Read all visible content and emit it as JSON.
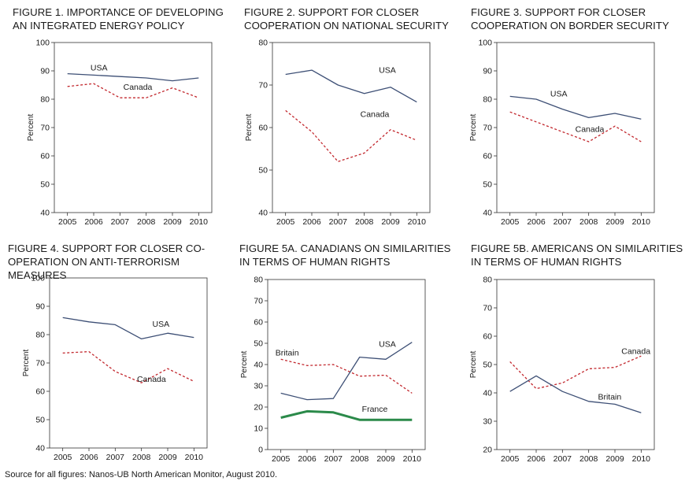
{
  "source_note": "Source for all figures: Nanos-UB North American Monitor, August 2010.",
  "colors": {
    "usa": "#3d4f75",
    "canada": "#c2272d",
    "france": "#2b8a4a",
    "britain_canada_chart": "#c2272d",
    "britain_us_chart": "#3d4f75"
  },
  "chart_data": [
    {
      "type": "line",
      "title": "FIGURE 1. IMPORTANCE OF DEVELOPING AN INTEGRATED ENERGY POLICY",
      "ylabel": "Percent",
      "ylim": [
        40,
        100
      ],
      "yticks": [
        40,
        50,
        60,
        70,
        80,
        90,
        100
      ],
      "categories": [
        "2005",
        "2006",
        "2007",
        "2008",
        "2009",
        "2010"
      ],
      "series": [
        {
          "name": "USA",
          "values": [
            89,
            88.5,
            88,
            87.5,
            86.5,
            87.5
          ],
          "style": "solid",
          "color": "#3d4f75"
        },
        {
          "name": "Canada",
          "values": [
            84.5,
            85.5,
            80.5,
            80.5,
            84,
            80.5
          ],
          "style": "dashed",
          "color": "#c2272d"
        }
      ]
    },
    {
      "type": "line",
      "title": "FIGURE 2. SUPPORT FOR CLOSER COOPERATION ON NATIONAL SECURITY",
      "ylabel": "Percent",
      "ylim": [
        40,
        80
      ],
      "yticks": [
        40,
        50,
        60,
        70,
        80
      ],
      "categories": [
        "2005",
        "2006",
        "2007",
        "2008",
        "2009",
        "2010"
      ],
      "series": [
        {
          "name": "USA",
          "values": [
            72.5,
            73.5,
            70,
            68,
            69.5,
            66
          ],
          "style": "solid",
          "color": "#3d4f75"
        },
        {
          "name": "Canada",
          "values": [
            64,
            59,
            52,
            54,
            59.5,
            57
          ],
          "style": "dashed",
          "color": "#c2272d"
        }
      ]
    },
    {
      "type": "line",
      "title": "FIGURE 3. SUPPORT FOR CLOSER COOPERATION ON BORDER SECURITY",
      "ylabel": "Percent",
      "ylim": [
        40,
        100
      ],
      "yticks": [
        40,
        50,
        60,
        70,
        80,
        90,
        100
      ],
      "categories": [
        "2005",
        "2006",
        "2007",
        "2008",
        "2009",
        "2010"
      ],
      "series": [
        {
          "name": "USA",
          "values": [
            81,
            80,
            76.5,
            73.5,
            75,
            73
          ],
          "style": "solid",
          "color": "#3d4f75"
        },
        {
          "name": "Canada",
          "values": [
            75.5,
            72,
            68.5,
            65,
            70.5,
            65
          ],
          "style": "dashed",
          "color": "#c2272d"
        }
      ]
    },
    {
      "type": "line",
      "title": "FIGURE 4. SUPPORT FOR CLOSER CO-OPERATION ON ANTI-TERRORISM MEASURES",
      "ylabel": "Percent",
      "ylim": [
        40,
        100
      ],
      "yticks": [
        40,
        50,
        60,
        70,
        80,
        90,
        100
      ],
      "categories": [
        "2005",
        "2006",
        "2007",
        "2008",
        "2009",
        "2010"
      ],
      "series": [
        {
          "name": "USA",
          "values": [
            86,
            84.5,
            83.5,
            78.5,
            80.5,
            79
          ],
          "style": "solid",
          "color": "#3d4f75"
        },
        {
          "name": "Canada",
          "values": [
            73.5,
            74,
            67,
            63,
            68,
            63.5
          ],
          "style": "dashed",
          "color": "#c2272d"
        }
      ]
    },
    {
      "type": "line",
      "title": "FIGURE 5A. CANADIANS ON SIMILARITIES IN TERMS OF HUMAN RIGHTS",
      "ylabel": "Percent",
      "ylim": [
        0,
        80
      ],
      "yticks": [
        0,
        10,
        20,
        30,
        40,
        50,
        60,
        70,
        80
      ],
      "categories": [
        "2005",
        "2006",
        "2007",
        "2008",
        "2009",
        "2010"
      ],
      "series": [
        {
          "name": "Britain",
          "values": [
            42.5,
            39.5,
            40,
            34.5,
            35,
            26.5
          ],
          "style": "dashed",
          "color": "#c2272d"
        },
        {
          "name": "USA",
          "values": [
            26.5,
            23.5,
            24,
            43.5,
            42.5,
            50.5
          ],
          "style": "solid",
          "color": "#3d4f75"
        },
        {
          "name": "France",
          "values": [
            15,
            18,
            17.5,
            14,
            14,
            14
          ],
          "style": "thick",
          "color": "#2b8a4a"
        }
      ]
    },
    {
      "type": "line",
      "title": "FIGURE 5B. AMERICANS ON SIMILARITIES IN TERMS OF HUMAN RIGHTS",
      "ylabel": "Percent",
      "ylim": [
        20,
        80
      ],
      "yticks": [
        20,
        30,
        40,
        50,
        60,
        70,
        80
      ],
      "categories": [
        "2005",
        "2006",
        "2007",
        "2008",
        "2009",
        "2010"
      ],
      "series": [
        {
          "name": "Canada",
          "values": [
            51,
            41.5,
            43.5,
            48.5,
            49,
            53
          ],
          "style": "dashed",
          "color": "#c2272d"
        },
        {
          "name": "Britain",
          "values": [
            40.5,
            46,
            40.5,
            37,
            36,
            33
          ],
          "style": "solid",
          "color": "#3d4f75"
        }
      ]
    }
  ]
}
